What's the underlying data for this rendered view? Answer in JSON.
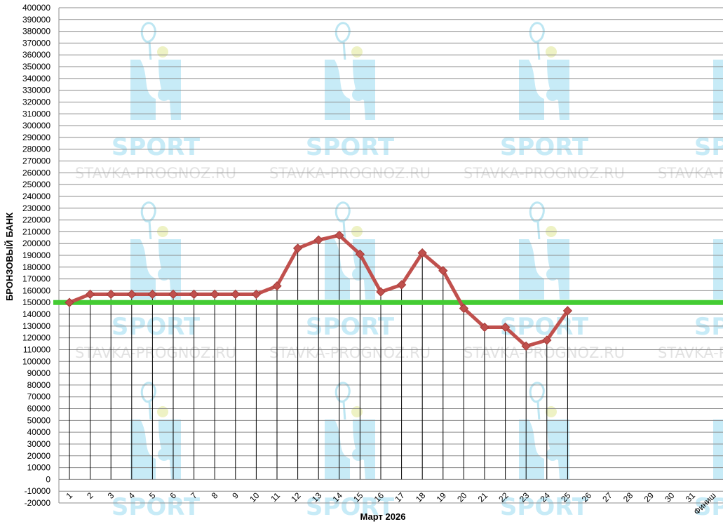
{
  "chart_data": {
    "type": "line",
    "title": "",
    "xlabel": "Март 2026",
    "ylabel": "БРОНЗОВЫЙ БАНК",
    "x_ticks": [
      "1",
      "2",
      "3",
      "4",
      "5",
      "6",
      "7",
      "8",
      "9",
      "10",
      "11",
      "12",
      "13",
      "14",
      "15",
      "16",
      "17",
      "18",
      "19",
      "20",
      "21",
      "22",
      "23",
      "24",
      "25",
      "26",
      "27",
      "28",
      "29",
      "30",
      "31",
      "Финиш"
    ],
    "ylim": [
      -20000,
      400000
    ],
    "y_step": 10000,
    "grid": "horizontal",
    "reference_line": {
      "value": 150000,
      "color": "#44cc33"
    },
    "series": [
      {
        "color": "#c0504d",
        "x": [
          1,
          2,
          3,
          4,
          5,
          6,
          7,
          8,
          9,
          10,
          11,
          12,
          13,
          14,
          15,
          16,
          17,
          18,
          19,
          20,
          21,
          22,
          23,
          24,
          25
        ],
        "values": [
          150000,
          157000,
          157000,
          157000,
          157000,
          157000,
          157000,
          157000,
          157000,
          157000,
          164000,
          196000,
          203000,
          207000,
          191000,
          159000,
          165000,
          192000,
          177000,
          145000,
          129000,
          129000,
          113000,
          118000,
          143000
        ]
      }
    ]
  },
  "watermark": {
    "brand": "SPORT",
    "site": "STAVKA-PROGNOZ.RU",
    "icon": "tennis-player-icon"
  }
}
